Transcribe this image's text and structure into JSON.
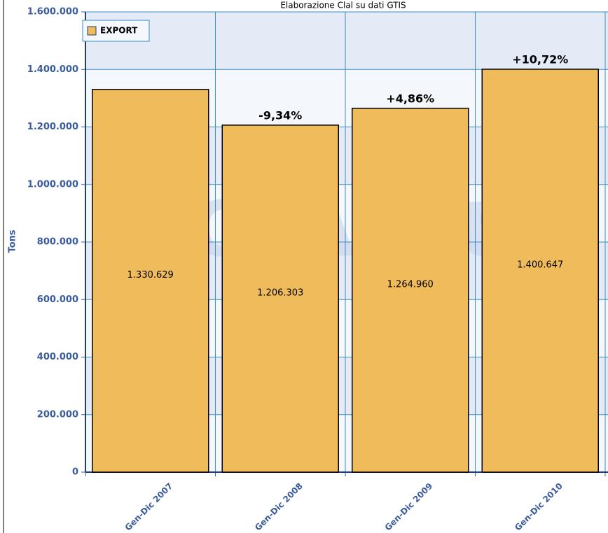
{
  "chart_data": {
    "type": "bar",
    "title": "Elaborazione Clal su dati GTIS",
    "y_label": "Tons",
    "watermark": "CLAL.it",
    "categories": [
      "Gen-Dic 2007",
      "Gen-Dic 2008",
      "Gen-Dic 2009",
      "Gen-Dic 2010"
    ],
    "series": [
      {
        "name": "EXPORT",
        "color": "#f0bb5a",
        "values": [
          1330629,
          1206303,
          1264960,
          1400647
        ],
        "value_labels": [
          "1.330.629",
          "1.206.303",
          "1.264.960",
          "1.400.647"
        ]
      }
    ],
    "growth_labels": [
      null,
      "-9,34%",
      "+4,86%",
      "+10,72%"
    ],
    "ylim": [
      0,
      1600000
    ],
    "yticks": [
      {
        "value": 0,
        "label": "0"
      },
      {
        "value": 200000,
        "label": "200.000"
      },
      {
        "value": 400000,
        "label": "400.000"
      },
      {
        "value": 600000,
        "label": "600.000"
      },
      {
        "value": 800000,
        "label": "800.000"
      },
      {
        "value": 1000000,
        "label": "1.000.000"
      },
      {
        "value": 1200000,
        "label": "1.200.000"
      },
      {
        "value": 1400000,
        "label": "1.400.000"
      },
      {
        "value": 1600000,
        "label": "1.600.000"
      }
    ],
    "grid": true,
    "legend": "top-left"
  }
}
